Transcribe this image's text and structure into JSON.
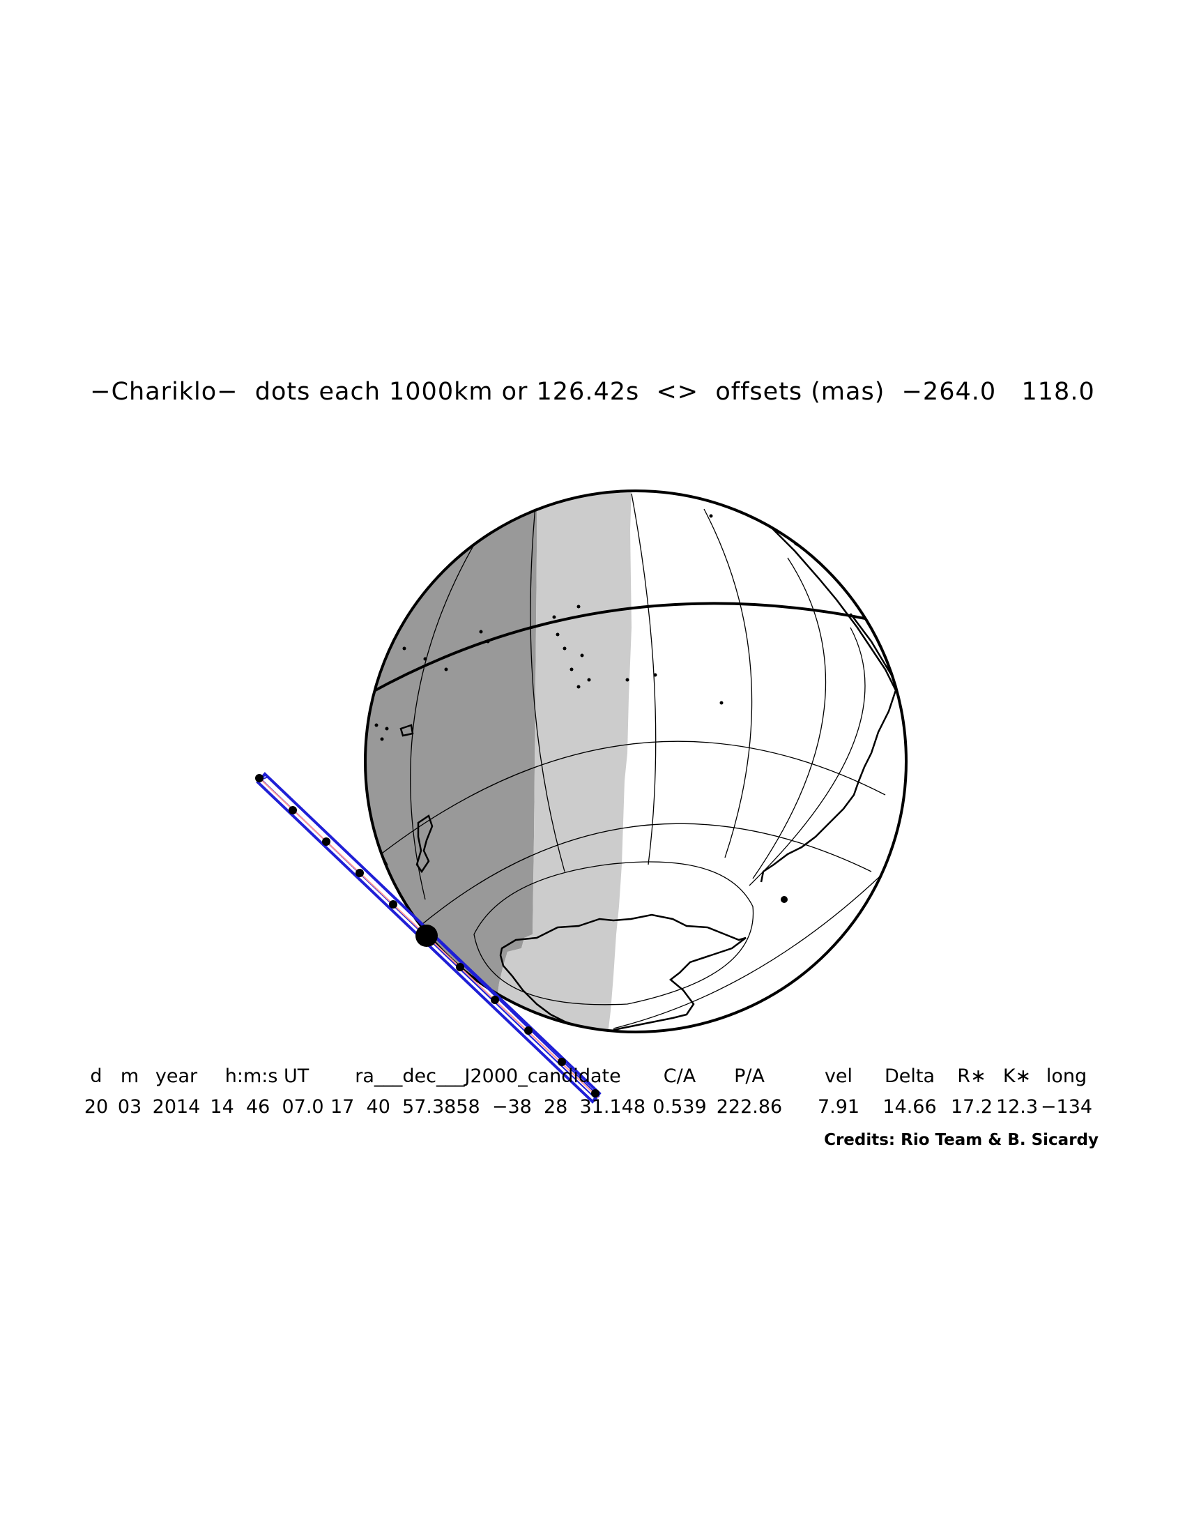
{
  "title": "−Chariklo−  dots each 1000km or 126.42s  <>  offsets (mas)  −264.0   118.0",
  "table": {
    "headers": [
      "d",
      "m",
      "year",
      "h:m:s UT",
      "ra___dec___J2000_candidate",
      "C/A",
      "P/A",
      "vel",
      "Delta",
      "R∗",
      "K∗",
      "long"
    ],
    "values": [
      "20",
      "03",
      "2014",
      "14  46  07.0",
      "17  40  57.3858  −38  28  31.148",
      "0.539",
      "222.86",
      "7.91",
      "14.66",
      "17.2",
      "12.3",
      "−134"
    ]
  },
  "credits": "Credits: Rio Team & B. Sicardy",
  "colors": {
    "night": "#999999",
    "twilight": "#cccccc",
    "day": "#ffffff",
    "track": "#1f1fd6",
    "center_line": "#ff9999",
    "outline": "#000000"
  },
  "icons": [
    "globe-map",
    "occultation-track",
    "track-dot"
  ]
}
